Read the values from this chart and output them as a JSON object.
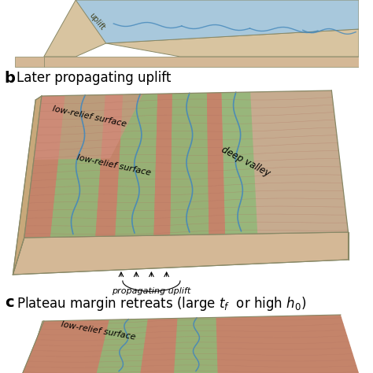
{
  "bg_color": "#ffffff",
  "colors": {
    "sandy_tan": "#C8A87A",
    "sandy_tan2": "#D4B896",
    "pink_high": "#CC8878",
    "pink_terrain": "#C4846A",
    "green_valley": "#90B878",
    "blue_river": "#4488BB",
    "light_blue_flat": "#A8C8DC",
    "cream_side": "#D8C4A0",
    "light_grey": "#C8CCB8",
    "outline": "#888866"
  },
  "label_b": "b",
  "label_b_text": "Later propagating uplift",
  "label_c": "c",
  "label_c_text": "Plateau margin retreats (large ",
  "label_c_end": " or high "
}
